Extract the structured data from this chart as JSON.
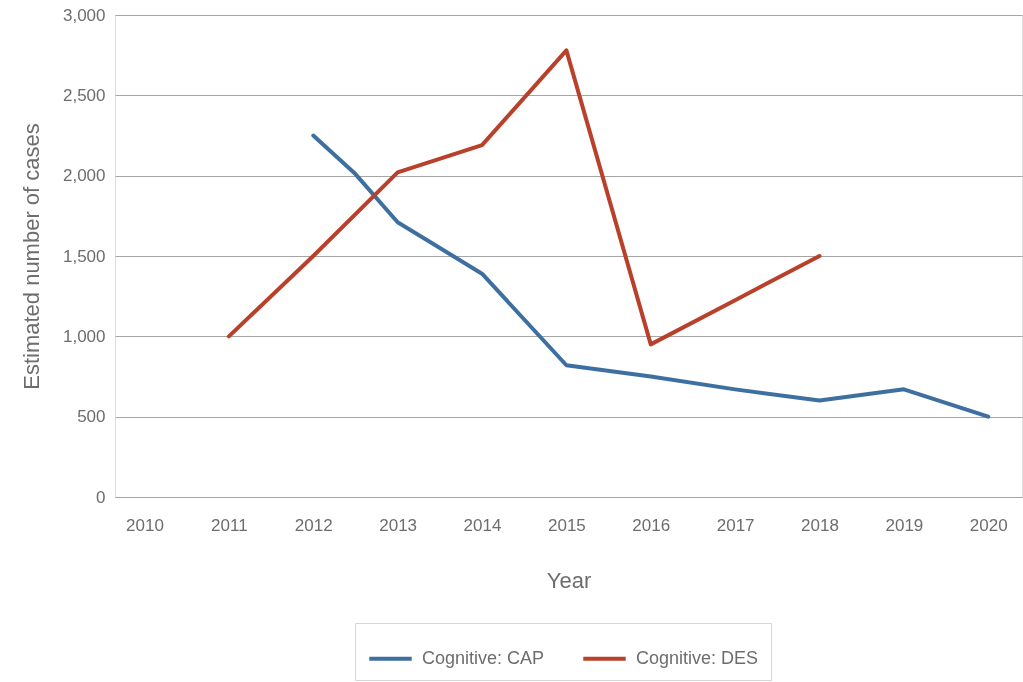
{
  "chart_data": {
    "type": "line",
    "xlabel": "Year",
    "ylabel": "Estimated number of cases",
    "xlim": [
      2009.65,
      2020.4
    ],
    "xticks": [
      2010,
      2011,
      2012,
      2013,
      2014,
      2015,
      2016,
      2017,
      2018,
      2019,
      2020
    ],
    "ylim": [
      0,
      3000
    ],
    "yticks": [
      0,
      500,
      {
        "value": 1000,
        "label": "1,000"
      },
      {
        "value": 1500,
        "label": "1,500"
      },
      {
        "value": 2000,
        "label": "2,000"
      },
      {
        "value": 2500,
        "label": "2,500"
      },
      {
        "value": 3000,
        "label": "3,000"
      }
    ],
    "series": [
      {
        "name": "Cognitive: CAP",
        "color": "#3d6fa1",
        "x": [
          2012,
          2012.5,
          2013,
          2014,
          2015,
          2016,
          2017,
          2018,
          2019,
          2020
        ],
        "values": [
          2250,
          2010,
          1710,
          1390,
          820,
          750,
          670,
          600,
          670,
          500
        ]
      },
      {
        "name": "Cognitive: DES",
        "color": "#b9402a",
        "x": [
          2011,
          2012,
          2013,
          2014,
          2015,
          2016,
          2017,
          2018
        ],
        "values": [
          1000,
          1500,
          2020,
          2190,
          2780,
          950,
          1225,
          1500
        ]
      }
    ],
    "grid": "y",
    "legend": "bottom",
    "marker": "none",
    "line_style": "solid"
  }
}
